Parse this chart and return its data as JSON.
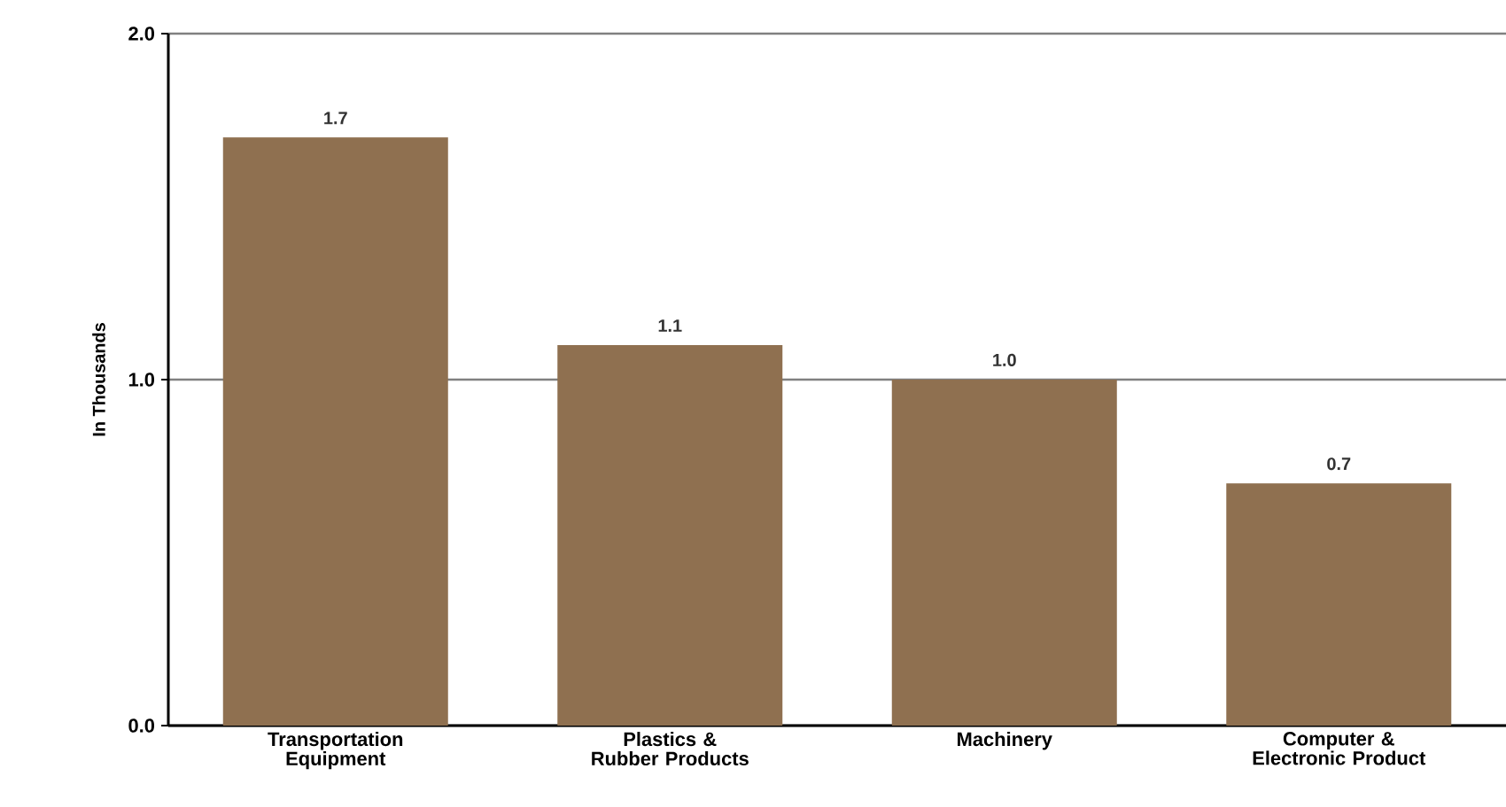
{
  "chart_data": {
    "type": "bar",
    "ylabel": "In Thousands",
    "categories": [
      "Transportation Equipment",
      "Plastics & Rubber Products",
      "Machinery",
      "Computer & Electronic Product"
    ],
    "values": [
      1.7,
      1.1,
      1.0,
      0.7
    ],
    "color": "#8f7050",
    "ylim": [
      0,
      2.0
    ],
    "yticks": [
      {
        "value": 0,
        "label": "0.0"
      },
      {
        "value": 1,
        "label": "1.0"
      },
      {
        "value": 2,
        "label": "2.0"
      }
    ],
    "grid": "y",
    "value_labels": [
      "1.7",
      "1.1",
      "1.0",
      "0.7"
    ]
  }
}
